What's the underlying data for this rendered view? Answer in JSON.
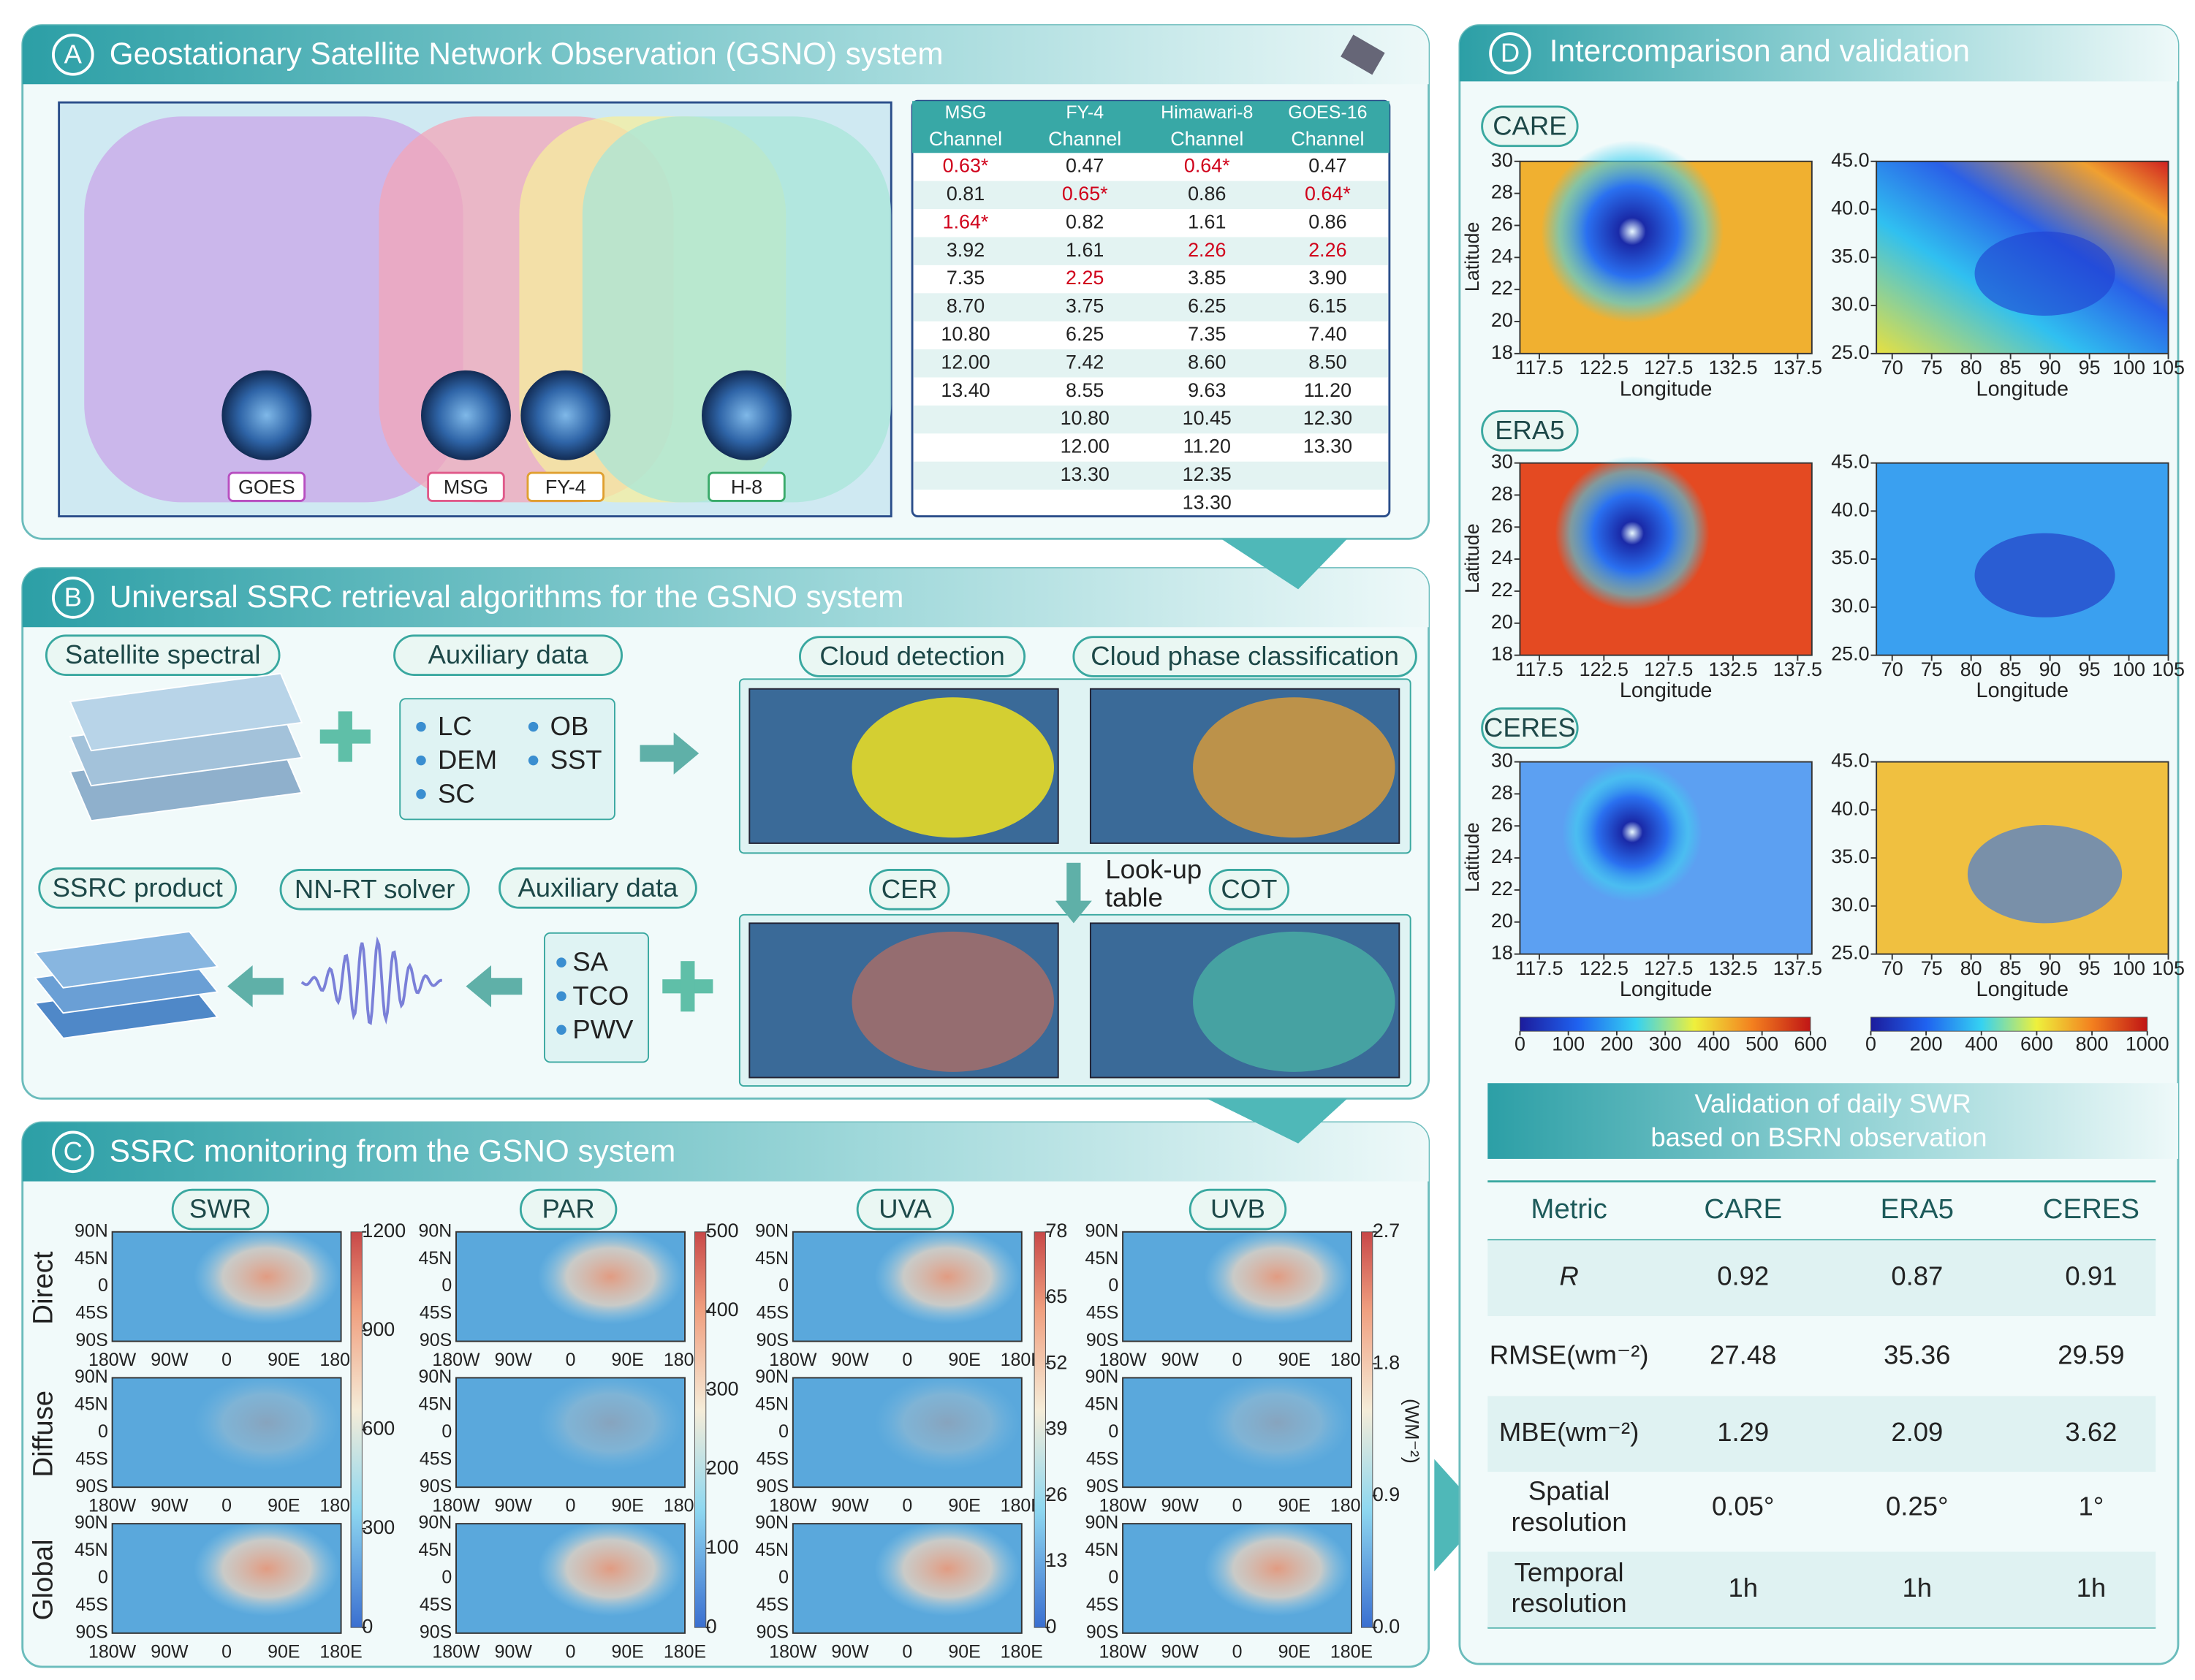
{
  "panel_a": {
    "label": "A",
    "title": "Geostationary Satellite Network Observation (GSNO) system",
    "satellites": [
      "GOES",
      "MSG",
      "FY-4",
      "H-8"
    ],
    "table": {
      "highlight_color": "#d0021b",
      "columns": [
        {
          "name": "MSG",
          "sub": "Channel",
          "values": [
            {
              "text": "0.63*",
              "highlight": true
            },
            "0.81",
            {
              "text": "1.64*",
              "highlight": true
            },
            "3.92",
            "7.35",
            "8.70",
            "10.80",
            "12.00",
            "13.40"
          ]
        },
        {
          "name": "FY-4",
          "sub": "Channel",
          "values": [
            "0.47",
            {
              "text": "0.65*",
              "highlight": true
            },
            "0.82",
            "1.61",
            {
              "text": "2.25",
              "highlight": true
            },
            "3.75",
            "6.25",
            "7.42",
            "8.55",
            "10.80",
            "12.00",
            "13.30"
          ]
        },
        {
          "name": "Himawari-8",
          "sub": "Channel",
          "values": [
            {
              "text": "0.64*",
              "highlight": true
            },
            "0.86",
            "1.61",
            {
              "text": "2.26",
              "highlight": true
            },
            "3.85",
            "6.25",
            "7.35",
            "8.60",
            "9.63",
            "10.45",
            "11.20",
            "12.35",
            "13.30"
          ]
        },
        {
          "name": "GOES-16",
          "sub": "Channel",
          "values": [
            "0.47",
            {
              "text": "0.64*",
              "highlight": true
            },
            "0.86",
            {
              "text": "2.26",
              "highlight": true
            },
            "3.90",
            "6.15",
            "7.40",
            "8.50",
            "11.20",
            "12.30",
            "13.30"
          ]
        }
      ]
    }
  },
  "panel_b": {
    "label": "B",
    "title": "Universal SSRC retrieval algorithms for the GSNO system",
    "satellite_spectral": "Satellite spectral",
    "auxiliary_1": {
      "title": "Auxiliary data",
      "items": [
        "LC",
        "OB",
        "DEM",
        "SST",
        "SC"
      ]
    },
    "cloud_detection": "Cloud detection",
    "cloud_phase": "Cloud phase classification",
    "lookup": [
      "Look-up",
      "table"
    ],
    "cer": "CER",
    "cot": "COT",
    "auxiliary_2": {
      "title": "Auxiliary data",
      "items": [
        "SA",
        "TCO",
        "PWV"
      ]
    },
    "nn_rt": "NN-RT solver",
    "product": "SSRC product"
  },
  "panel_c": {
    "label": "C",
    "title": "SSRC monitoring from the GSNO system",
    "rows": [
      "Direct",
      "Diffuse",
      "Global"
    ],
    "lat_ticks": [
      "90N",
      "45N",
      "0",
      "45S",
      "90S"
    ],
    "lon_ticks": [
      "180W",
      "90W",
      "0",
      "90E",
      "180E"
    ],
    "variables": [
      {
        "name": "SWR",
        "clim": [
          0,
          1200
        ],
        "cticks": [
          0,
          300,
          600,
          900,
          1200
        ]
      },
      {
        "name": "PAR",
        "clim": [
          0,
          500
        ],
        "cticks": [
          0,
          100,
          200,
          300,
          400,
          500
        ]
      },
      {
        "name": "UVA",
        "clim": [
          0,
          78
        ],
        "cticks": [
          0,
          13,
          26,
          39,
          52,
          65,
          78
        ]
      },
      {
        "name": "UVB",
        "clim": [
          0,
          2.7
        ],
        "cticks": [
          {
            "value": 0,
            "label": "0.0"
          },
          0.9,
          1.8,
          2.7
        ],
        "unit": "(WM⁻²)"
      }
    ]
  },
  "panel_d": {
    "label": "D",
    "title": "Intercomparison and validation",
    "datasets": [
      "CARE",
      "ERA5",
      "CERES"
    ],
    "xlabel": "Longitude",
    "ylabel": "Latitude",
    "left": {
      "xlim": [
        116,
        138.6
      ],
      "ylim": [
        18,
        30
      ],
      "xticks": [
        117.5,
        122.5,
        127.5,
        132.5,
        137.5
      ],
      "yticks": [
        18,
        20,
        22,
        24,
        26,
        28,
        30
      ],
      "clim": [
        0,
        600
      ],
      "cticks": [
        0,
        100,
        200,
        300,
        400,
        500,
        600
      ]
    },
    "right": {
      "xlim": [
        68,
        105
      ],
      "ylim": [
        25,
        45
      ],
      "xticks": [
        70,
        75,
        80,
        85,
        90,
        95,
        100,
        105
      ],
      "yticks": [
        {
          "value": 25,
          "label": "25.0"
        },
        {
          "value": 30,
          "label": "30.0"
        },
        {
          "value": 35,
          "label": "35.0"
        },
        {
          "value": 40,
          "label": "40.0"
        },
        {
          "value": 45,
          "label": "45.0"
        }
      ],
      "clim": [
        0,
        1000
      ],
      "cticks": [
        0,
        200,
        400,
        600,
        800,
        1000
      ]
    },
    "validation": {
      "title": [
        "Validation of daily SWR",
        "based on BSRN observation"
      ],
      "header": [
        "Metric",
        "CARE",
        "ERA5",
        "CERES"
      ],
      "rows": [
        [
          "R",
          "0.92",
          "0.87",
          "0.91"
        ],
        [
          "RMSE(wm⁻²)",
          "27.48",
          "35.36",
          "29.59"
        ],
        [
          "MBE(wm⁻²)",
          "1.29",
          "2.09",
          "3.62"
        ],
        [
          [
            "Spatial",
            "resolution"
          ],
          "0.05°",
          "0.25°",
          "1°"
        ],
        [
          [
            "Temporal",
            "resolution"
          ],
          "1h",
          "1h",
          "1h"
        ]
      ]
    }
  }
}
